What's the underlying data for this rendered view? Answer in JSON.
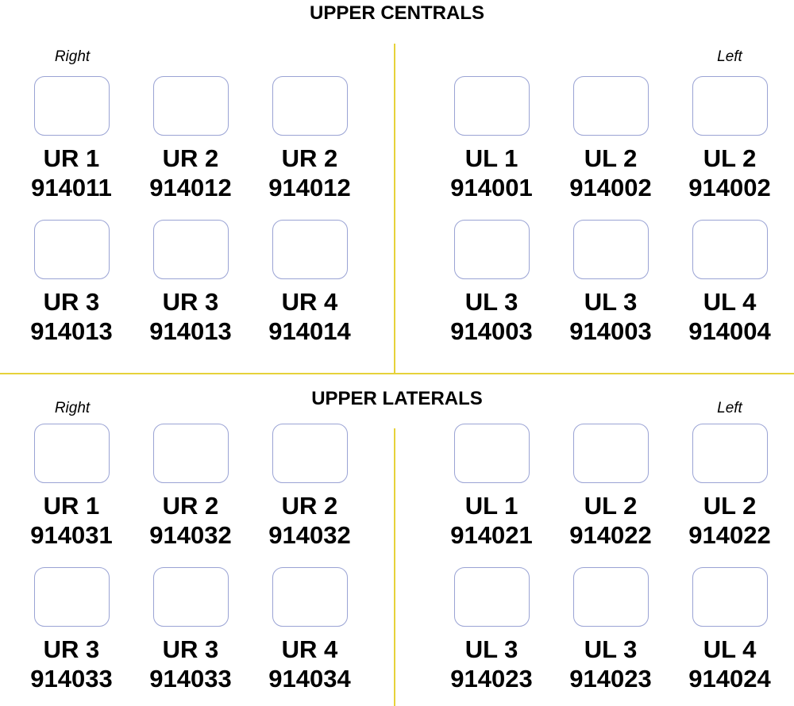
{
  "sections": [
    {
      "title": "UPPER CENTRALS",
      "right_label": "Right",
      "left_label": "Left",
      "right_rows": [
        [
          {
            "tooth": "UR 1",
            "code": "914011"
          },
          {
            "tooth": "UR 2",
            "code": "914012"
          },
          {
            "tooth": "UR 2",
            "code": "914012"
          }
        ],
        [
          {
            "tooth": "UR 3",
            "code": "914013"
          },
          {
            "tooth": "UR 3",
            "code": "914013"
          },
          {
            "tooth": "UR 4",
            "code": "914014"
          }
        ]
      ],
      "left_rows": [
        [
          {
            "tooth": "UL 1",
            "code": "914001"
          },
          {
            "tooth": "UL 2",
            "code": "914002"
          },
          {
            "tooth": "UL 2",
            "code": "914002"
          }
        ],
        [
          {
            "tooth": "UL 3",
            "code": "914003"
          },
          {
            "tooth": "UL 3",
            "code": "914003"
          },
          {
            "tooth": "UL 4",
            "code": "914004"
          }
        ]
      ]
    },
    {
      "title": "UPPER LATERALS",
      "right_label": "Right",
      "left_label": "Left",
      "right_rows": [
        [
          {
            "tooth": "UR 1",
            "code": "914031"
          },
          {
            "tooth": "UR 2",
            "code": "914032"
          },
          {
            "tooth": "UR 2",
            "code": "914032"
          }
        ],
        [
          {
            "tooth": "UR 3",
            "code": "914033"
          },
          {
            "tooth": "UR 3",
            "code": "914033"
          },
          {
            "tooth": "UR 4",
            "code": "914034"
          }
        ]
      ],
      "left_rows": [
        [
          {
            "tooth": "UL 1",
            "code": "914021"
          },
          {
            "tooth": "UL 2",
            "code": "914022"
          },
          {
            "tooth": "UL 2",
            "code": "914022"
          }
        ],
        [
          {
            "tooth": "UL 3",
            "code": "914023"
          },
          {
            "tooth": "UL 3",
            "code": "914023"
          },
          {
            "tooth": "UL 4",
            "code": "914024"
          }
        ]
      ]
    }
  ],
  "colors": {
    "divider": "#e6d23a",
    "box_border": "#9aa3d4"
  }
}
